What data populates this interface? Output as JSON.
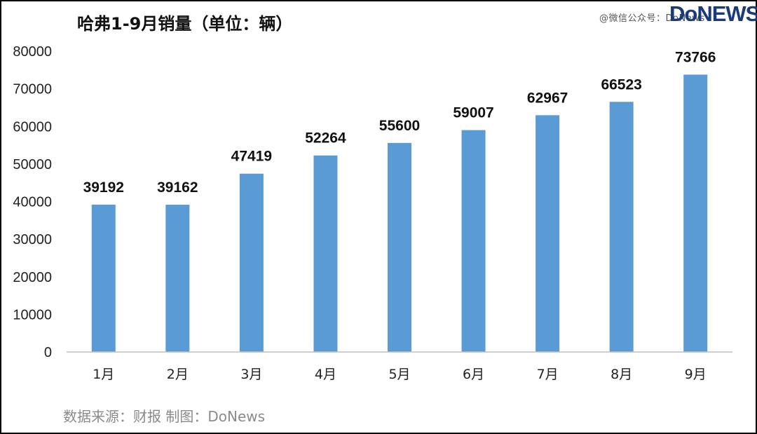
{
  "header": {
    "title": "哈弗1-9月销量（单位：辆）",
    "watermark": "@微信公众号：DoNews",
    "logo": "DoNEWS"
  },
  "footer": {
    "source": "数据来源：财报  制图：DoNews"
  },
  "colors": {
    "bar": "#5b9bd5",
    "axis": "#bfbfbf"
  },
  "chart_data": {
    "type": "bar",
    "title": "哈弗1-9月销量（单位：辆）",
    "categories": [
      "1月",
      "2月",
      "3月",
      "4月",
      "5月",
      "6月",
      "7月",
      "8月",
      "9月"
    ],
    "values": [
      39192,
      39162,
      47419,
      52264,
      55600,
      59007,
      62967,
      66523,
      73766
    ],
    "ylim": [
      0,
      80000
    ],
    "yticks": [
      0,
      10000,
      20000,
      30000,
      40000,
      50000,
      60000,
      70000,
      80000
    ],
    "grid": false,
    "data_labels": true
  }
}
